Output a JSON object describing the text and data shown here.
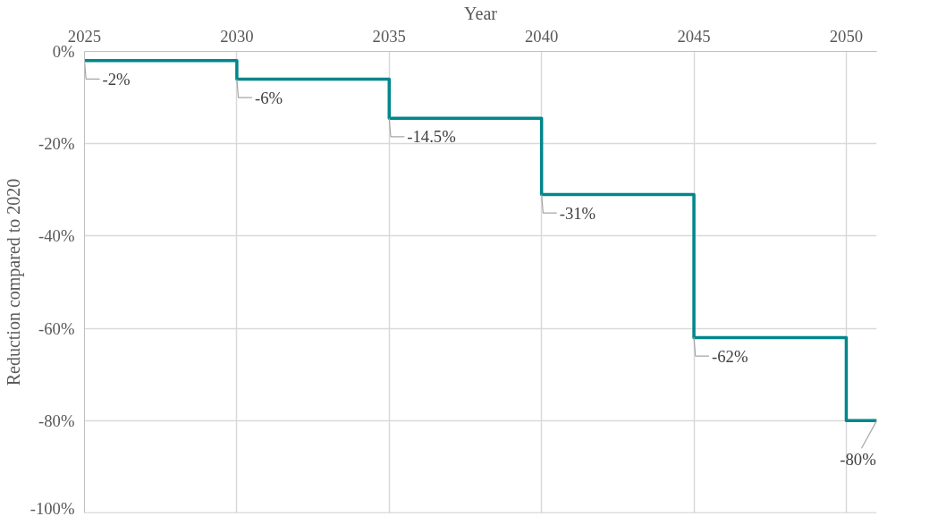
{
  "chart_data": {
    "type": "step",
    "xlabel": "Year",
    "ylabel": "Reduction compared to 2020",
    "x": [
      2025,
      2030,
      2035,
      2040,
      2045,
      2050,
      2051
    ],
    "series": [
      {
        "color": "#00868b",
        "values": [
          -2,
          -6,
          -14.5,
          -31,
          -62,
          -80,
          -80
        ],
        "value_labels": [
          "-2%",
          "-6%",
          "-14.5%",
          "-31%",
          "-62%",
          null,
          "-80%"
        ]
      }
    ],
    "xlim": [
      2025,
      2051
    ],
    "xticks": [
      2025,
      2030,
      2035,
      2040,
      2045,
      2050
    ],
    "ylim": [
      -100,
      0
    ],
    "yticks": [
      {
        "value": 0,
        "label": "0%"
      },
      {
        "value": -20,
        "label": "-20%"
      },
      {
        "value": -40,
        "label": "-40%"
      },
      {
        "value": -60,
        "label": "-60%"
      },
      {
        "value": -80,
        "label": "-80%"
      },
      {
        "value": -100,
        "label": "-100%"
      }
    ],
    "grid": true,
    "line_style": "solid",
    "marker": "none"
  }
}
